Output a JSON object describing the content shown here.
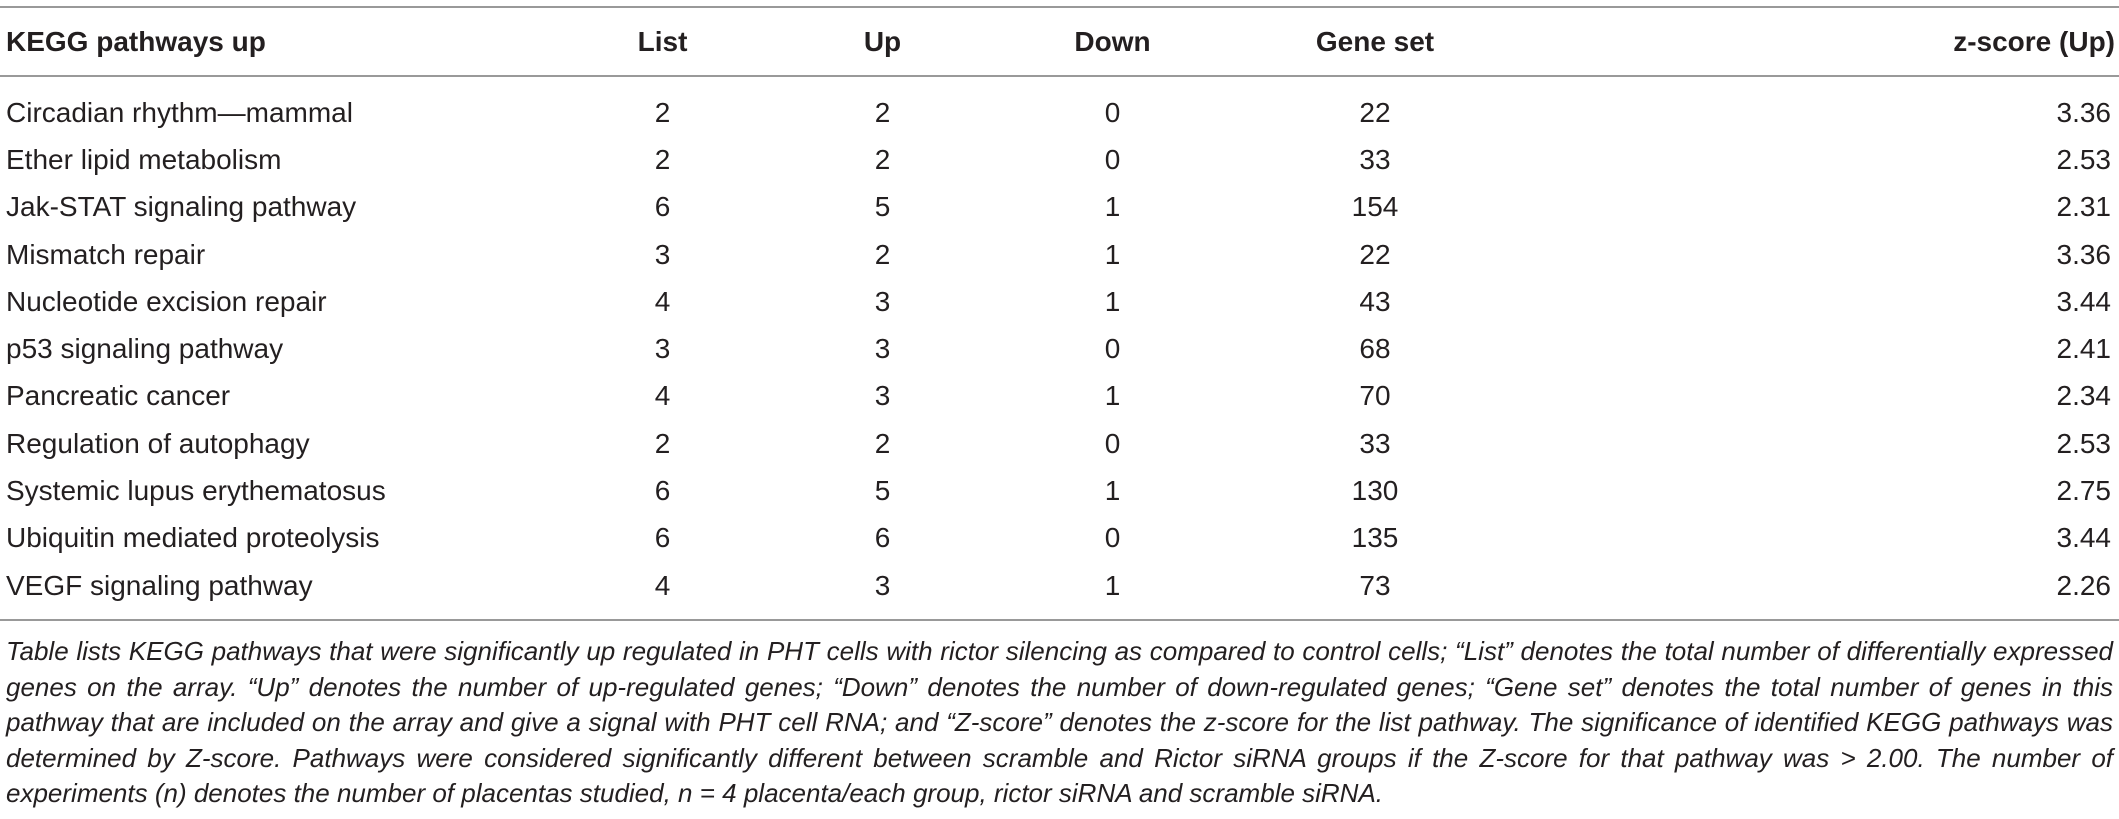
{
  "table": {
    "headers": [
      "KEGG pathways up",
      "List",
      "Up",
      "Down",
      "Gene set",
      "z-score (Up)"
    ],
    "rows": [
      [
        "Circadian rhythm—mammal",
        "2",
        "2",
        "0",
        "22",
        "3.36"
      ],
      [
        "Ether lipid metabolism",
        "2",
        "2",
        "0",
        "33",
        "2.53"
      ],
      [
        "Jak-STAT signaling pathway",
        "6",
        "5",
        "1",
        "154",
        "2.31"
      ],
      [
        "Mismatch repair",
        "3",
        "2",
        "1",
        "22",
        "3.36"
      ],
      [
        "Nucleotide excision repair",
        "4",
        "3",
        "1",
        "43",
        "3.44"
      ],
      [
        "p53 signaling pathway",
        "3",
        "3",
        "0",
        "68",
        "2.41"
      ],
      [
        "Pancreatic cancer",
        "4",
        "3",
        "1",
        "70",
        "2.34"
      ],
      [
        "Regulation of autophagy",
        "2",
        "2",
        "0",
        "33",
        "2.53"
      ],
      [
        "Systemic lupus erythematosus",
        "6",
        "5",
        "1",
        "130",
        "2.75"
      ],
      [
        "Ubiquitin mediated proteolysis",
        "6",
        "6",
        "0",
        "135",
        "3.44"
      ],
      [
        "VEGF signaling pathway",
        "4",
        "3",
        "1",
        "73",
        "2.26"
      ]
    ]
  },
  "footnote": "Table lists KEGG pathways that were significantly up regulated in PHT cells with rictor silencing as compared to control cells; “List” denotes the total number of differentially expressed genes on the array. “Up” denotes the number of up-regulated genes; “Down” denotes the number of down-regulated genes; “Gene set” denotes the total number of genes in this pathway that are included on the array and give a signal with PHT cell RNA; and “Z-score” denotes the z-score for the list pathway. The significance of identified KEGG pathways was determined by Z-score. Pathways were considered significantly different between scramble and Rictor siRNA groups if the Z-score for that pathway was > 2.00. The number of experiments (n) denotes the number of placentas studied, n = 4 placenta/each group, rictor siRNA and scramble siRNA."
}
